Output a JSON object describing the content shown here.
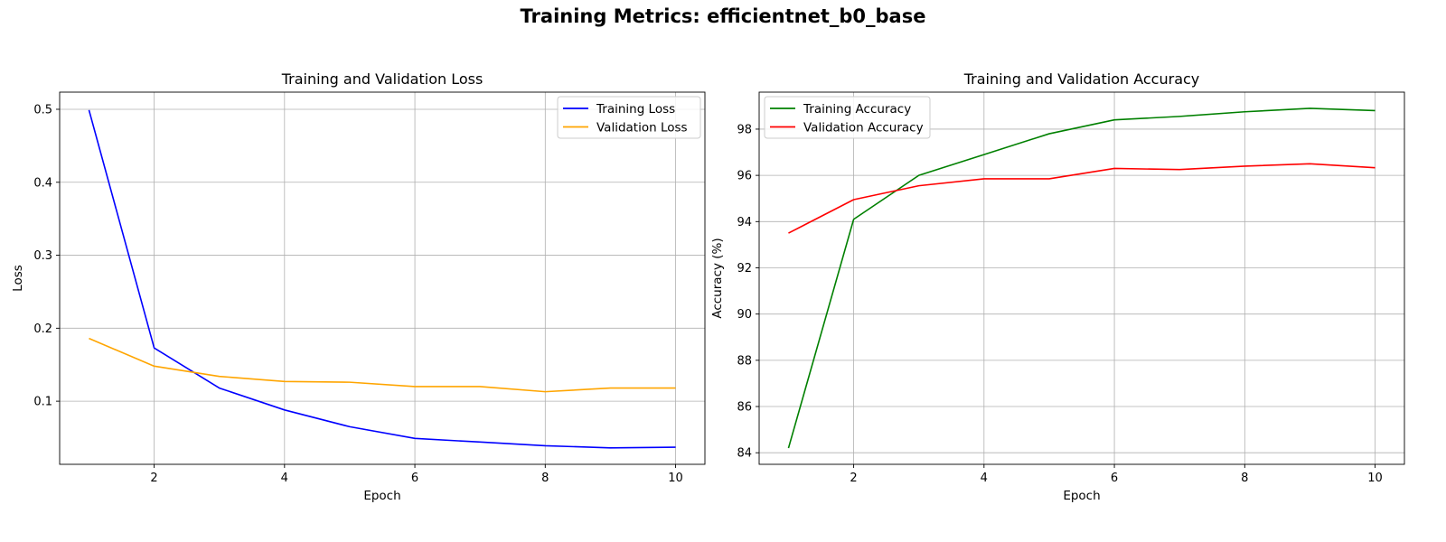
{
  "title": "Training Metrics: efficientnet_b0_base",
  "chart_data": [
    {
      "type": "line",
      "title": "Training and Validation Loss",
      "xlabel": "Epoch",
      "ylabel": "Loss",
      "x": [
        1,
        2,
        3,
        4,
        5,
        6,
        7,
        8,
        9,
        10
      ],
      "xticks": [
        2,
        4,
        6,
        8,
        10
      ],
      "yticks": [
        0.1,
        0.2,
        0.3,
        0.4,
        0.5
      ],
      "xlim": [
        0.55,
        10.45
      ],
      "ylim": [
        0.0135,
        0.5235
      ],
      "grid": true,
      "legend_position": "top-right",
      "series": [
        {
          "name": "Training Loss",
          "color": "#0000ff",
          "values": [
            0.499,
            0.173,
            0.118,
            0.088,
            0.065,
            0.049,
            0.044,
            0.039,
            0.036,
            0.037
          ]
        },
        {
          "name": "Validation Loss",
          "color": "#ffa500",
          "values": [
            0.186,
            0.148,
            0.134,
            0.127,
            0.126,
            0.12,
            0.12,
            0.113,
            0.118,
            0.118
          ]
        }
      ]
    },
    {
      "type": "line",
      "title": "Training and Validation Accuracy",
      "xlabel": "Epoch",
      "ylabel": "Accuracy (%)",
      "x": [
        1,
        2,
        3,
        4,
        5,
        6,
        7,
        8,
        9,
        10
      ],
      "xticks": [
        2,
        4,
        6,
        8,
        10
      ],
      "yticks": [
        84,
        86,
        88,
        90,
        92,
        94,
        96,
        98
      ],
      "xlim": [
        0.55,
        10.45
      ],
      "ylim": [
        83.5,
        99.6
      ],
      "grid": true,
      "legend_position": "top-left",
      "series": [
        {
          "name": "Training Accuracy",
          "color": "#008000",
          "values": [
            84.2,
            94.1,
            96.0,
            96.9,
            97.8,
            98.4,
            98.55,
            98.75,
            98.9,
            98.8
          ]
        },
        {
          "name": "Validation Accuracy",
          "color": "#ff0000",
          "values": [
            93.5,
            94.95,
            95.55,
            95.85,
            95.85,
            96.3,
            96.25,
            96.4,
            96.5,
            96.33
          ]
        }
      ]
    }
  ]
}
